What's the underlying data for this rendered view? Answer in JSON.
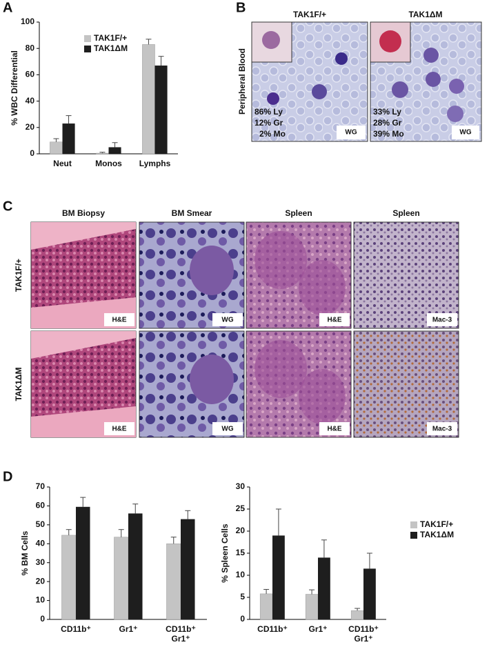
{
  "panel_labels": [
    "A",
    "B",
    "C",
    "D"
  ],
  "panel_b": {
    "row_label": "Peripheral Blood",
    "columns": [
      {
        "title": "TAK1F/+",
        "counts": [
          "86% Ly",
          "12% Gr",
          "2% Mo"
        ],
        "stain": "WG"
      },
      {
        "title": "TAK1ΔM",
        "counts": [
          "33% Ly",
          "28% Gr",
          "39% Mo"
        ],
        "stain": "WG"
      }
    ]
  },
  "panel_c": {
    "columns": [
      "BM Biopsy",
      "BM Smear",
      "Spleen",
      "Spleen"
    ],
    "rows": [
      {
        "label": "TAK1F/+",
        "stains": [
          "H&E",
          "WG",
          "H&E",
          "Mac-3"
        ]
      },
      {
        "label": "TAK1ΔM",
        "stains": [
          "H&E",
          "WG",
          "H&E",
          "Mac-3"
        ]
      }
    ]
  },
  "chart_data": [
    {
      "type": "bar",
      "y_label": "% WBC Differential",
      "categories": [
        "Neut",
        "Monos",
        "Lymphs"
      ],
      "series": [
        {
          "name": "TAK1F/+",
          "color": "#c4c4c4",
          "values": [
            9,
            0.5,
            83
          ],
          "errors": [
            2.5,
            0.7,
            4
          ]
        },
        {
          "name": "TAK1ΔM",
          "color": "#1e1e1e",
          "values": [
            23,
            5,
            67
          ],
          "errors": [
            6,
            3.5,
            7
          ]
        }
      ],
      "ylim": [
        0,
        100
      ],
      "yticks": [
        0,
        20,
        40,
        60,
        80,
        100
      ],
      "legend": "top"
    },
    {
      "type": "bar",
      "y_label": "% BM Cells",
      "categories": [
        "CD11b⁺",
        "Gr1⁺",
        "CD11b⁺ Gr1⁺"
      ],
      "series": [
        {
          "color": "#c4c4c4",
          "values": [
            44.5,
            43.5,
            40
          ],
          "errors": [
            3,
            4,
            3.5
          ]
        },
        {
          "color": "#1e1e1e",
          "values": [
            59.5,
            56,
            53
          ],
          "errors": [
            5,
            5,
            4.5
          ]
        }
      ],
      "ylim": [
        0,
        70
      ],
      "yticks": [
        0,
        10,
        20,
        30,
        40,
        50,
        60,
        70
      ]
    },
    {
      "type": "bar",
      "y_label": "% Spleen Cells",
      "categories": [
        "CD11b⁺",
        "Gr1⁺",
        "CD11b⁺ Gr1⁺"
      ],
      "series": [
        {
          "name": "TAK1F/+",
          "color": "#c4c4c4",
          "values": [
            5.8,
            5.7,
            2
          ],
          "errors": [
            1,
            1,
            0.5
          ]
        },
        {
          "name": "TAK1ΔM",
          "color": "#1e1e1e",
          "values": [
            19,
            14,
            11.5
          ],
          "errors": [
            6,
            4,
            3.5
          ]
        }
      ],
      "ylim": [
        0,
        30
      ],
      "yticks": [
        0,
        5,
        10,
        15,
        20,
        25,
        30
      ],
      "legend": "right"
    }
  ]
}
